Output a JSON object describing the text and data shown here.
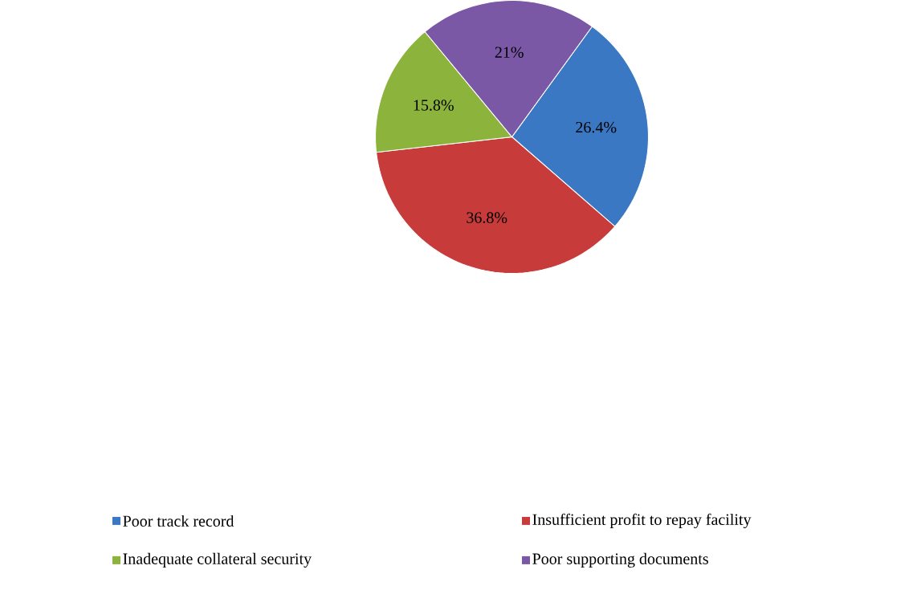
{
  "chart_data": {
    "type": "pie",
    "categories": [
      "Poor track record",
      "Insufficient profit to repay facility",
      "Inadequate collateral security",
      "Poor supporting documents"
    ],
    "values": [
      26.4,
      36.8,
      15.8,
      21
    ],
    "colors": [
      "#3b78c3",
      "#c83b3b",
      "#8cb43c",
      "#7b58a6"
    ],
    "value_labels": [
      "26.4%",
      "36.8%",
      "15.8%",
      "21%"
    ],
    "legend": "bottom"
  }
}
